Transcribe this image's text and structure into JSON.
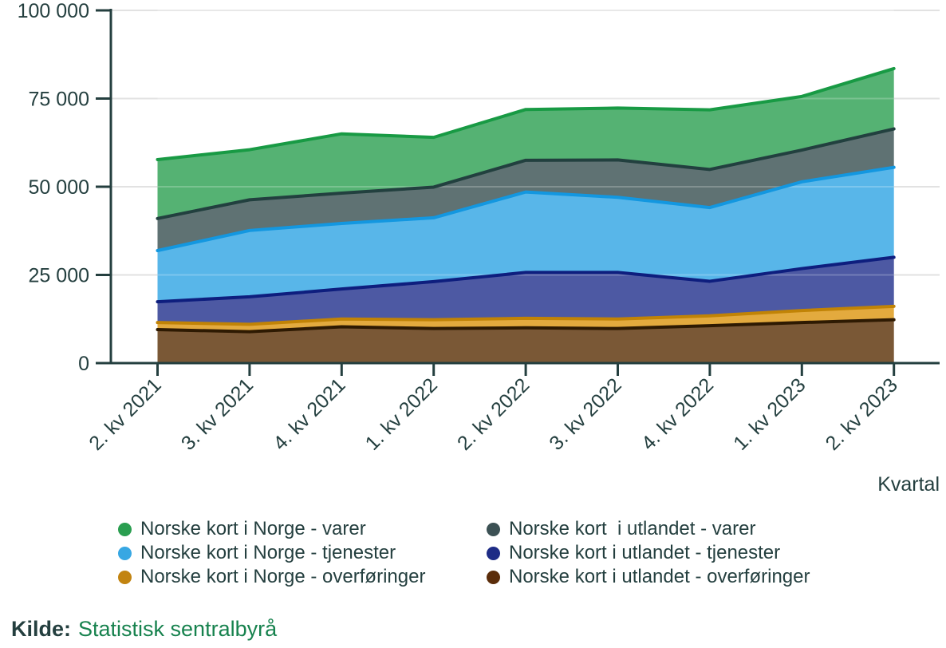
{
  "chart_data": {
    "type": "area",
    "stacked": true,
    "x": [
      "2. kv 2021",
      "3. kv 2021",
      "4. kv 2021",
      "1. kv 2022",
      "2. kv 2022",
      "3. kv 2022",
      "4. kv 2022",
      "1. kv 2023",
      "2. kv 2023"
    ],
    "xlabel": "Kvartal",
    "ylim": [
      0,
      100000
    ],
    "ytick_values": [
      0,
      25000,
      50000,
      75000,
      100000
    ],
    "ytick_labels": [
      "0",
      "25 000",
      "50 000",
      "75 000",
      "100 000"
    ],
    "grid": true,
    "series": [
      {
        "name": "Norske kort i utlandet - overføringer",
        "values": [
          9500,
          8900,
          10300,
          9800,
          10000,
          9800,
          10600,
          11500,
          12300
        ],
        "fill": "#7a5836",
        "stroke": "#2e1a02",
        "dot": "#5b2d0a"
      },
      {
        "name": "Norske kort i Norge - overføringer",
        "values": [
          2000,
          2100,
          2200,
          2500,
          2700,
          2700,
          2800,
          3400,
          3800
        ],
        "fill": "#e3aa3e",
        "stroke": "#c18306",
        "dot": "#c28410"
      },
      {
        "name": "Norske kort i utlandet - tjenester",
        "values": [
          5900,
          7800,
          8500,
          10800,
          13000,
          13200,
          9800,
          11900,
          13900
        ],
        "fill": "#4d59a3",
        "stroke": "#0e1e7e",
        "dot": "#1e2c86"
      },
      {
        "name": "Norske kort i Norge - tjenester",
        "values": [
          14500,
          18800,
          18600,
          18100,
          22800,
          21300,
          20900,
          24600,
          25500
        ],
        "fill": "#58b6e9",
        "stroke": "#1397e0",
        "dot": "#37a7e3"
      },
      {
        "name": "Norske kort  i utlandet - varer",
        "values": [
          9100,
          8700,
          8600,
          8700,
          9000,
          10600,
          10800,
          9000,
          10900
        ],
        "fill": "#5f7273",
        "stroke": "#22403f",
        "dot": "#3c5154"
      },
      {
        "name": "Norske kort i Norge - varer",
        "values": [
          16700,
          14200,
          16800,
          14100,
          14400,
          14700,
          16900,
          15200,
          17100
        ],
        "fill": "#55b273",
        "stroke": "#189a44",
        "dot": "#2a9e50"
      }
    ],
    "legend_position": "bottom",
    "legend_columns": [
      [
        "Norske kort i Norge - varer",
        "Norske kort i Norge - tjenester",
        "Norske kort i Norge - overføringer"
      ],
      [
        "Norske kort  i utlandet - varer",
        "Norske kort i utlandet - tjenester",
        "Norske kort i utlandet - overføringer"
      ]
    ]
  },
  "colors": {
    "axis": "#243f3f",
    "grid": "#e2e2e2",
    "text": "#243f3f",
    "link_green": "#17824e",
    "background": "#ffffff"
  },
  "source": {
    "label": "Kilde:",
    "link": "Statistisk sentralbyrå"
  }
}
